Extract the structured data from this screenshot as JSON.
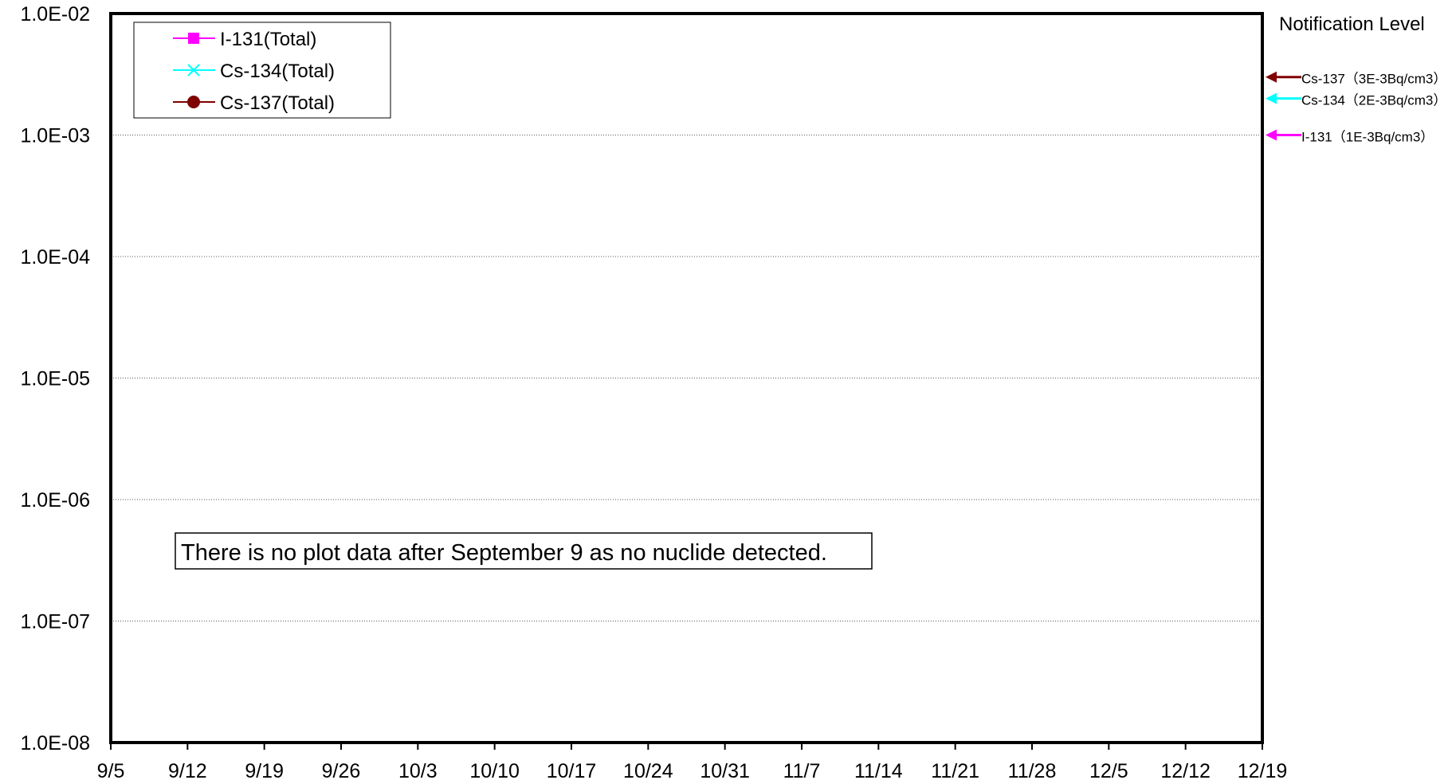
{
  "chart_data": {
    "type": "line",
    "title": "",
    "xlabel": "",
    "ylabel": "",
    "y_scale": "log",
    "ylim": [
      1e-08,
      0.01
    ],
    "y_tick_labels": [
      "1.0E-02",
      "1.0E-03",
      "1.0E-04",
      "1.0E-05",
      "1.0E-06",
      "1.0E-07",
      "1.0E-08"
    ],
    "x_tick_labels": [
      "9/5",
      "9/12",
      "9/19",
      "9/26",
      "10/3",
      "10/10",
      "10/17",
      "10/24",
      "10/31",
      "11/7",
      "11/14",
      "11/21",
      "11/28",
      "12/5",
      "12/12",
      "12/19"
    ],
    "grid": "horizontal dotted",
    "legend_position": "top-left",
    "series": [
      {
        "name": "I-131(Total)",
        "color": "#ff00ff",
        "marker": "square",
        "values": []
      },
      {
        "name": "Cs-134(Total)",
        "color": "#00ffff",
        "marker": "x",
        "values": []
      },
      {
        "name": "Cs-137(Total)",
        "color": "#800000",
        "marker": "circle",
        "values": []
      }
    ],
    "notification_level": {
      "title": "Notification Level",
      "items": [
        {
          "label": "Cs-137（3E-3Bq/cm3）",
          "value": 0.003,
          "color": "#800000"
        },
        {
          "label": "Cs-134（2E-3Bq/cm3）",
          "value": 0.002,
          "color": "#00ffff"
        },
        {
          "label": "I-131（1E-3Bq/cm3）",
          "value": 0.001,
          "color": "#ff00ff"
        }
      ]
    },
    "annotation": "There is no plot data after September 9 as no nuclide detected."
  }
}
